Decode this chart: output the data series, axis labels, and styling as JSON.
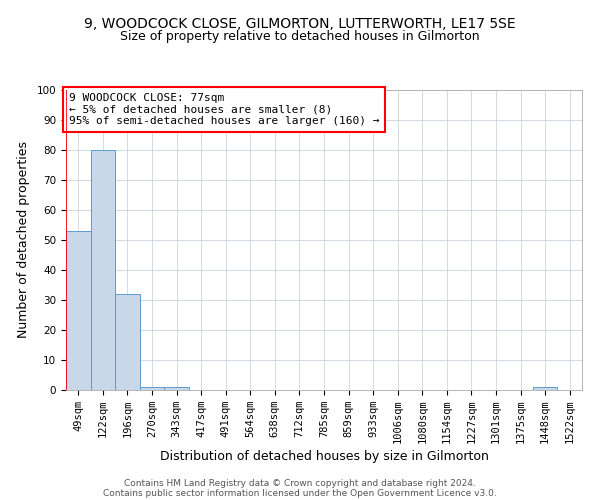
{
  "title1": "9, WOODCOCK CLOSE, GILMORTON, LUTTERWORTH, LE17 5SE",
  "title2": "Size of property relative to detached houses in Gilmorton",
  "xlabel": "Distribution of detached houses by size in Gilmorton",
  "ylabel": "Number of detached properties",
  "categories": [
    "49sqm",
    "122sqm",
    "196sqm",
    "270sqm",
    "343sqm",
    "417sqm",
    "491sqm",
    "564sqm",
    "638sqm",
    "712sqm",
    "785sqm",
    "859sqm",
    "933sqm",
    "1006sqm",
    "1080sqm",
    "1154sqm",
    "1227sqm",
    "1301sqm",
    "1375sqm",
    "1448sqm",
    "1522sqm"
  ],
  "values": [
    53,
    80,
    32,
    1,
    1,
    0,
    0,
    0,
    0,
    0,
    0,
    0,
    0,
    0,
    0,
    0,
    0,
    0,
    0,
    1,
    0
  ],
  "bar_color": "#c8d8e8",
  "bar_edge_color": "#5b9bd5",
  "ylim": [
    0,
    100
  ],
  "annotation_box_text": "9 WOODCOCK CLOSE: 77sqm\n← 5% of detached houses are smaller (8)\n95% of semi-detached houses are larger (160) →",
  "footer_line1": "Contains HM Land Registry data © Crown copyright and database right 2024.",
  "footer_line2": "Contains public sector information licensed under the Open Government Licence v3.0.",
  "background_color": "#ffffff",
  "grid_color": "#c8d4e0",
  "title1_fontsize": 10,
  "title2_fontsize": 9,
  "xlabel_fontsize": 9,
  "ylabel_fontsize": 9,
  "tick_fontsize": 7.5,
  "annot_fontsize": 8,
  "footer_fontsize": 6.5
}
